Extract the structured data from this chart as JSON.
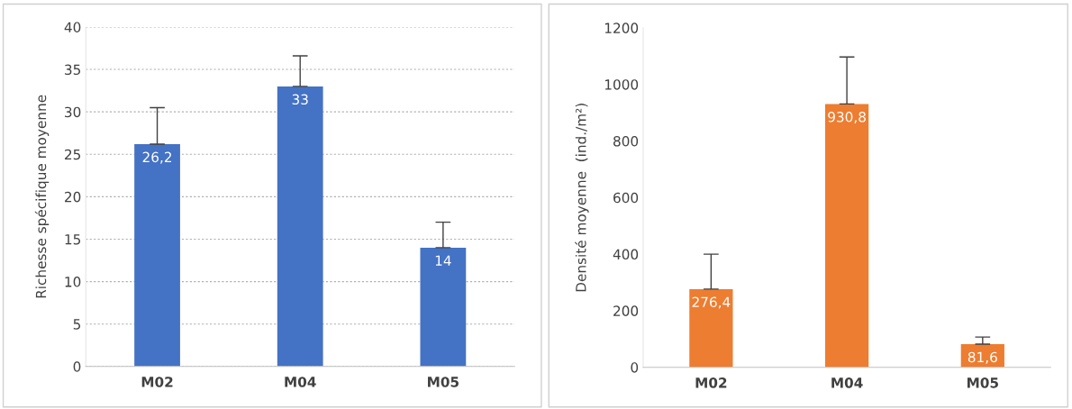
{
  "chart_data": [
    {
      "type": "bar",
      "categories": [
        "M02",
        "M04",
        "M05"
      ],
      "ylabel": "Richesse spécifique moyenne",
      "series": [
        {
          "color": "#4472c4",
          "values": [
            26.2,
            33,
            14
          ],
          "errors": [
            [
              26.2,
              30.5
            ],
            [
              33,
              36.6
            ],
            [
              14,
              17
            ]
          ]
        }
      ],
      "value_labels": [
        "26,2",
        "33",
        "14"
      ],
      "ylim": [
        0,
        40
      ],
      "yticks": [
        0,
        5,
        10,
        15,
        20,
        25,
        30,
        35,
        40
      ],
      "grid": "y"
    },
    {
      "type": "bar",
      "categories": [
        "M02",
        "M04",
        "M05"
      ],
      "ylabel": "Densité moyenne  (ind./m²)",
      "series": [
        {
          "color": "#ed7d31",
          "values": [
            276.4,
            930.8,
            81.6
          ],
          "errors": [
            [
              276.4,
              400
            ],
            [
              930.8,
              1097
            ],
            [
              81.6,
              107
            ]
          ]
        }
      ],
      "value_labels": [
        "276,4",
        "930,8",
        "81,6"
      ],
      "ylim": [
        0,
        1200
      ],
      "yticks": [
        0,
        200,
        400,
        600,
        800,
        1000,
        1200
      ],
      "grid": false
    }
  ]
}
